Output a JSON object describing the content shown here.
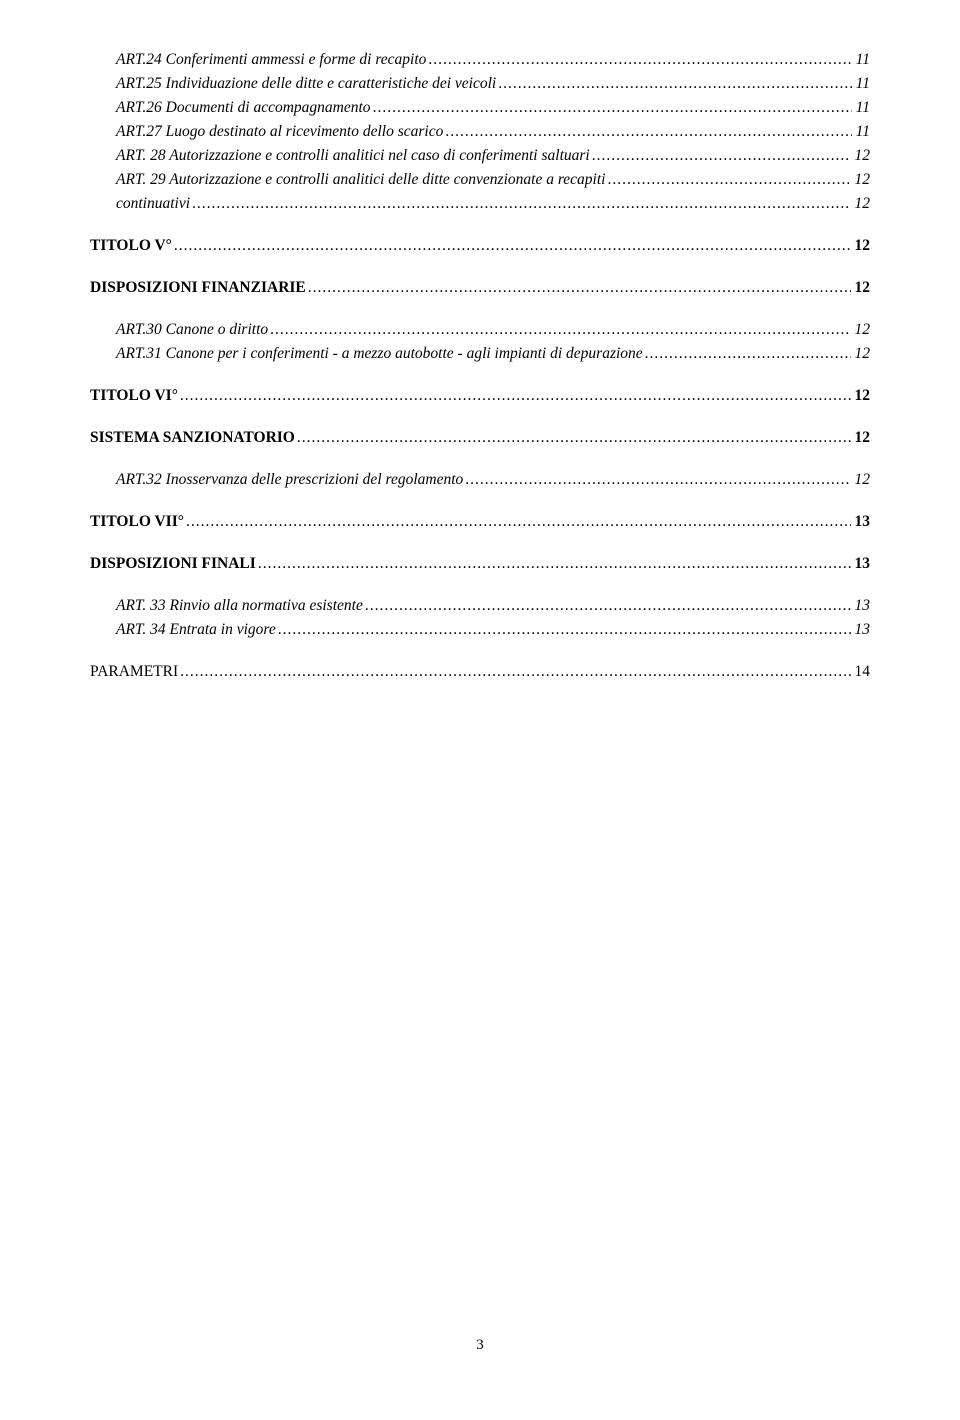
{
  "toc": {
    "entries": [
      {
        "label": "ART.24  Conferimenti ammessi e forme di recapito",
        "page": "11",
        "italic": true,
        "bold": false,
        "indent": true,
        "gap": false
      },
      {
        "label": "ART.25 Individuazione delle ditte e caratteristiche dei veicoli",
        "page": "11",
        "italic": true,
        "bold": false,
        "indent": true,
        "gap": false
      },
      {
        "label": "ART.26 Documenti di accompagnamento",
        "page": "11",
        "italic": true,
        "bold": false,
        "indent": true,
        "gap": false
      },
      {
        "label": "ART.27 Luogo destinato al ricevimento dello scarico",
        "page": "11",
        "italic": true,
        "bold": false,
        "indent": true,
        "gap": false
      },
      {
        "label": "ART. 28 Autorizzazione e controlli analitici nel caso di conferimenti saltuari",
        "page": "12",
        "italic": true,
        "bold": false,
        "indent": true,
        "gap": false
      },
      {
        "label": "ART. 29 Autorizzazione e controlli analitici delle ditte convenzionate a recapiti",
        "page": "12",
        "italic": true,
        "bold": false,
        "indent": true,
        "gap": false
      },
      {
        "label": "continuativi",
        "page": "12",
        "italic": true,
        "bold": false,
        "indent": true,
        "gap": false
      },
      {
        "label": "TITOLO V°",
        "page": "12",
        "italic": false,
        "bold": true,
        "indent": false,
        "gap": true
      },
      {
        "label": "DISPOSIZIONI FINANZIARIE",
        "page": "12",
        "italic": false,
        "bold": true,
        "indent": false,
        "gap": true
      },
      {
        "label": "ART.30 Canone o diritto",
        "page": "12",
        "italic": true,
        "bold": false,
        "indent": true,
        "gap": true
      },
      {
        "label": "ART.31 Canone per i conferimenti - a mezzo autobotte - agli impianti di depurazione",
        "page": "12",
        "italic": true,
        "bold": false,
        "indent": true,
        "gap": false
      },
      {
        "label": "TITOLO VI°",
        "page": "12",
        "italic": false,
        "bold": true,
        "indent": false,
        "gap": true
      },
      {
        "label": "SISTEMA SANZIONATORIO",
        "page": "12",
        "italic": false,
        "bold": true,
        "indent": false,
        "gap": true
      },
      {
        "label": "ART.32 Inosservanza delle prescrizioni del regolamento",
        "page": "12",
        "italic": true,
        "bold": false,
        "indent": true,
        "gap": true
      },
      {
        "label": "TITOLO VII°",
        "page": "13",
        "italic": false,
        "bold": true,
        "indent": false,
        "gap": true
      },
      {
        "label": "DISPOSIZIONI FINALI",
        "page": "13",
        "italic": false,
        "bold": true,
        "indent": false,
        "gap": true
      },
      {
        "label": "ART. 33  Rinvio alla normativa esistente",
        "page": "13",
        "italic": true,
        "bold": false,
        "indent": true,
        "gap": true
      },
      {
        "label": "ART. 34 Entrata in vigore",
        "page": "13",
        "italic": true,
        "bold": false,
        "indent": true,
        "gap": false
      },
      {
        "label": "PARAMETRI",
        "page": "14",
        "italic": false,
        "bold": false,
        "indent": false,
        "gap": true
      }
    ]
  },
  "pageNumber": "3"
}
